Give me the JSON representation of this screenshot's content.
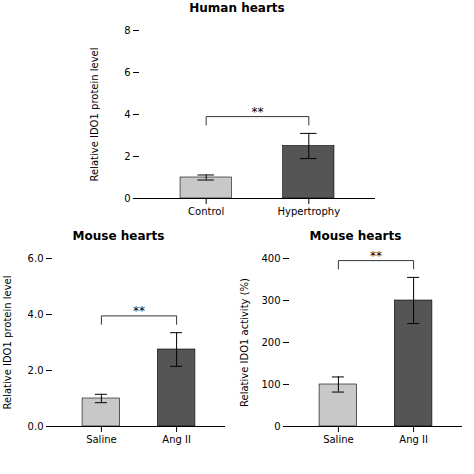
{
  "chart_data": [
    {
      "type": "bar",
      "title": "Human hearts",
      "ylabel": "Relative IDO1 protein level",
      "categories": [
        "Control",
        "Hypertrophy"
      ],
      "values": [
        1.0,
        2.5
      ],
      "errors": [
        0.12,
        0.6
      ],
      "colors": [
        "#c8c8c8",
        "#555555"
      ],
      "ylim": [
        0,
        8
      ],
      "yticks": [
        0,
        2,
        4,
        6,
        8
      ],
      "annotations": [
        "**"
      ]
    },
    {
      "type": "bar",
      "title": "Mouse hearts",
      "ylabel": "Relative IDO1 protein level",
      "categories": [
        "Saline",
        "Ang II"
      ],
      "values": [
        1.0,
        2.75
      ],
      "errors": [
        0.15,
        0.6
      ],
      "colors": [
        "#c8c8c8",
        "#555555"
      ],
      "ylim": [
        0,
        6
      ],
      "yticks": [
        0,
        2,
        4,
        6
      ],
      "annotations": [
        "**"
      ]
    },
    {
      "type": "bar",
      "title": "Mouse hearts",
      "ylabel": "Relative IDO1 activity (%)",
      "categories": [
        "Saline",
        "Ang II"
      ],
      "values": [
        100,
        300
      ],
      "errors": [
        18,
        55
      ],
      "colors": [
        "#c8c8c8",
        "#555555"
      ],
      "ylim": [
        0,
        400
      ],
      "yticks": [
        0,
        100,
        200,
        300,
        400
      ],
      "annotations": [
        "**"
      ]
    }
  ]
}
